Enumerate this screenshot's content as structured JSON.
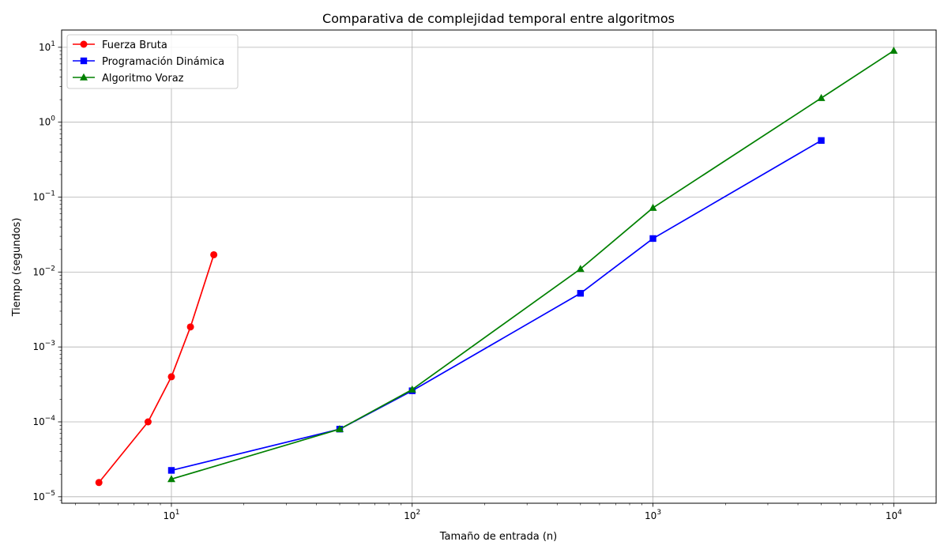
{
  "chart_data": {
    "type": "line",
    "title": "Comparativa de complejidad temporal entre algoritmos",
    "xlabel": "Tamaño de entrada (n)",
    "ylabel": "Tiempo (segundos)",
    "xscale": "log",
    "yscale": "log",
    "xlim": [
      3.5,
      15000
    ],
    "ylim": [
      8.2e-06,
      17
    ],
    "grid": true,
    "legend": "top-left",
    "x_ticks": [
      {
        "value": 10,
        "base": "10",
        "exp": "1"
      },
      {
        "value": 100,
        "base": "10",
        "exp": "2"
      },
      {
        "value": 1000,
        "base": "10",
        "exp": "3"
      },
      {
        "value": 10000,
        "base": "10",
        "exp": "4"
      }
    ],
    "y_ticks": [
      {
        "value": 1e-05,
        "base": "10",
        "exp": "−5"
      },
      {
        "value": 0.0001,
        "base": "10",
        "exp": "−4"
      },
      {
        "value": 0.001,
        "base": "10",
        "exp": "−3"
      },
      {
        "value": 0.01,
        "base": "10",
        "exp": "−2"
      },
      {
        "value": 0.1,
        "base": "10",
        "exp": "−1"
      },
      {
        "value": 1,
        "base": "10",
        "exp": "0"
      },
      {
        "value": 10,
        "base": "10",
        "exp": "1"
      }
    ],
    "series": [
      {
        "name": "Fuerza Bruta",
        "color": "#ff0000",
        "marker": "circle",
        "x": [
          5,
          8,
          10,
          12,
          15
        ],
        "y": [
          1.55e-05,
          0.0001,
          0.0004,
          0.00185,
          0.017
        ]
      },
      {
        "name": "Programación Dinámica",
        "color": "#0000ff",
        "marker": "square",
        "x": [
          10,
          50,
          100,
          500,
          1000,
          5000
        ],
        "y": [
          2.25e-05,
          8e-05,
          0.00026,
          0.0052,
          0.028,
          0.57
        ]
      },
      {
        "name": "Algoritmo Voraz",
        "color": "#008000",
        "marker": "triangle",
        "x": [
          10,
          50,
          100,
          500,
          1000,
          5000,
          10000
        ],
        "y": [
          1.72e-05,
          8e-05,
          0.00027,
          0.011,
          0.072,
          2.1,
          9
        ]
      }
    ]
  }
}
